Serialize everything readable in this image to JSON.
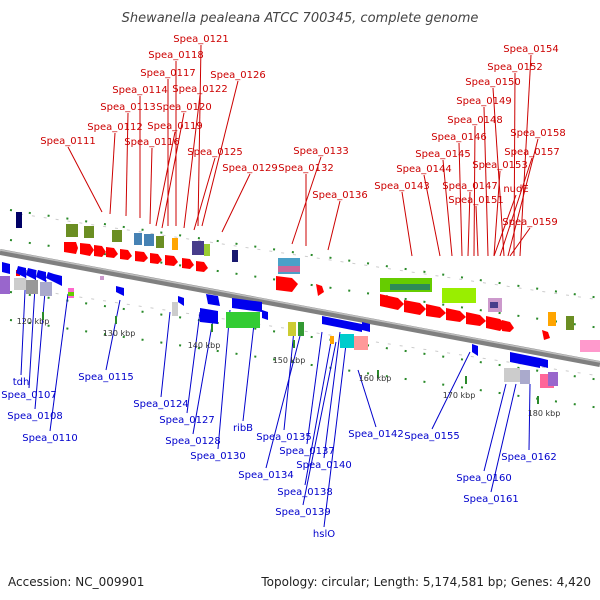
{
  "title": "Shewanella pealeana ATCC 700345, complete genome",
  "footer": {
    "accession": "Accession: NC_009901",
    "topology": "Topology: circular; Length: 5,174,581 bp; Genes: 4,420"
  },
  "ticks": [
    "120 kbp",
    "130 kbp",
    "140 kbp",
    "150 kbp",
    "160 kbp",
    "170 kbp",
    "180 kbp"
  ],
  "top_labels": [
    "Spea_0121",
    "Spea_0118",
    "Spea_0117",
    "Spea_0126",
    "Spea_0114",
    "Spea_0122",
    "Spea_0113",
    "Spea_0120",
    "Spea_0112",
    "Spea_0119",
    "Spea_0116",
    "Spea_0111",
    "Spea_0125",
    "Spea_0133",
    "Spea_0129",
    "Spea_0132",
    "Spea_0136",
    "Spea_0154",
    "Spea_0152",
    "Spea_0150",
    "Spea_0149",
    "Spea_0148",
    "Spea_0158",
    "Spea_0146",
    "Spea_0157",
    "Spea_0145",
    "Spea_0153",
    "Spea_0144",
    "Spea_0147",
    "nudE",
    "Spea_0143",
    "Spea_0151",
    "Spea_0159"
  ],
  "bottom_labels": [
    "tdh",
    "Spea_0107",
    "Spea_0108",
    "Spea_0110",
    "Spea_0115",
    "Spea_0124",
    "Spea_0127",
    "Spea_0128",
    "ribB",
    "Spea_0130",
    "Spea_0135",
    "Spea_0134",
    "Spea_0137",
    "Spea_0140",
    "Spea_0138",
    "Spea_0139",
    "hslO",
    "Spea_0142",
    "Spea_0155",
    "Spea_0160",
    "Spea_0161",
    "Spea_0162"
  ],
  "colors": {
    "forward_label": "#cc0000",
    "reverse_label": "#0000cc",
    "backbone": "#808080",
    "forward_gene": "#ff0000",
    "reverse_gene": "#0000ee"
  }
}
